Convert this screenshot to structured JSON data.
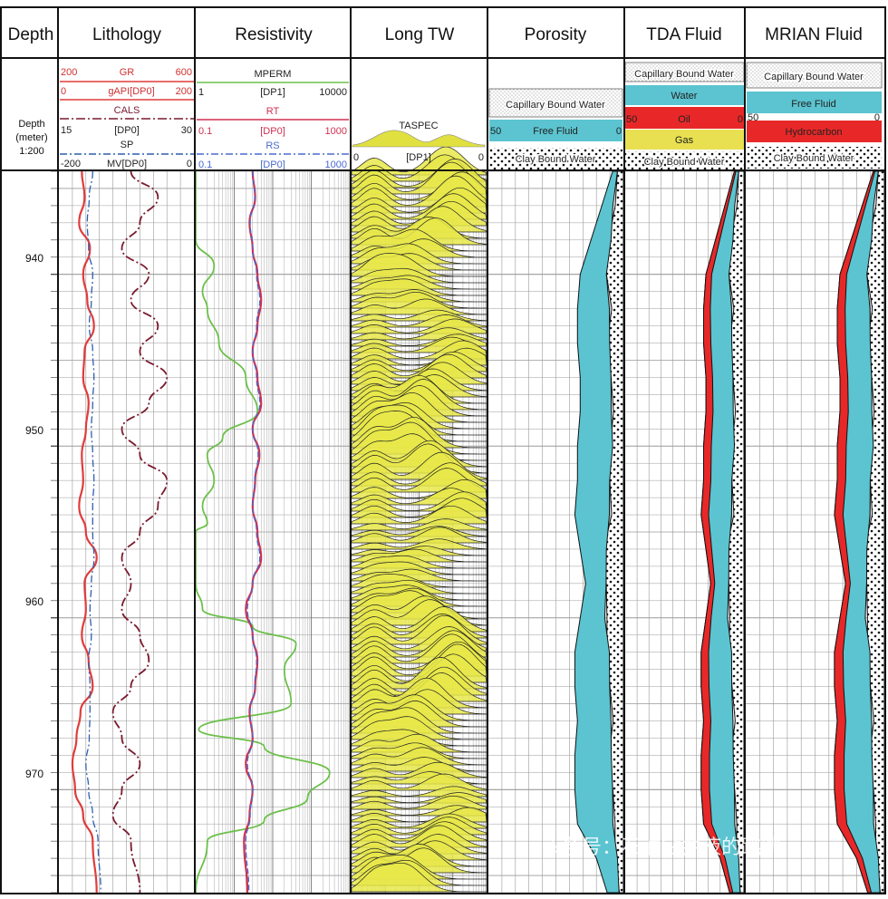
{
  "tracks": {
    "depth": "Depth",
    "lithology": "Lithology",
    "resistivity": "Resistivity",
    "longtw": "Long TW",
    "porosity": "Porosity",
    "tda": "TDA Fluid",
    "mrian": "MRIAN Fluid"
  },
  "depth_header": {
    "line1": "Depth",
    "line2": "(meter)",
    "scale": "1:200"
  },
  "litho_header": {
    "gr": {
      "name": "GR",
      "min": "200",
      "max": "600"
    },
    "gapi": {
      "name": "gAPI[DP0]",
      "min": "0",
      "max": "200"
    },
    "cals": {
      "name": "CALS",
      "min": "15",
      "max": "30",
      "unit": "[DP0]"
    },
    "sp": {
      "name": "SP",
      "min": "-200",
      "max": "0",
      "unit": "MV[DP0]"
    }
  },
  "res_header": {
    "mperm": {
      "name": "MPERM",
      "min": "1",
      "max": "10000",
      "unit": "[DP1]"
    },
    "rt": {
      "name": "RT",
      "min": "0.1",
      "max": "1000",
      "unit": "[DP0]"
    },
    "rs": {
      "name": "RS",
      "min": "0.1",
      "max": "1000",
      "unit": "[DP0]"
    }
  },
  "ltw_header": {
    "name": "TASPEC",
    "min": "0",
    "max": "0",
    "unit": "[DP1]"
  },
  "por_header": {
    "cbw": "Capillary Bound Water",
    "ff": "Free Fluid",
    "clay": "Clay Bound Water",
    "min": "50",
    "max": "0"
  },
  "tda_header": {
    "cbw": "Capillary Bound Water",
    "water": "Water",
    "oil": "Oil",
    "gas": "Gas",
    "clay": "Clay Bound Water",
    "min": "50",
    "max": "0"
  },
  "mrian_header": {
    "cbw": "Capillary Bound Water",
    "ff": "Free Fluid",
    "hc": "Hydrocarbon",
    "clay": "Clay Bound Water",
    "min": "50",
    "max": "0"
  },
  "colors": {
    "gr": "#e03c3c",
    "cals": "#7a1a2e",
    "sp": "#2e5fb0",
    "mperm": "#6cc04a",
    "rt": "#d03050",
    "rs": "#4a6ad0",
    "spec": "#e8e84a",
    "ff": "#5bc4d0",
    "oil": "#e82828",
    "gas": "#e8e050",
    "grid": "#9a9a9a"
  },
  "watermark": "头条号：石油钻井液的跳跳",
  "chart_data": {
    "type": "line",
    "depth_unit": "meter",
    "ylim": [
      934,
      976
    ],
    "depth_ticks": [
      940,
      950,
      960,
      970
    ],
    "series": [
      {
        "name": "GR",
        "track": "Lithology",
        "scale": [
          0,
          200
        ],
        "x": [
          34,
          38,
          30,
          46,
          36,
          42,
          52,
          38,
          36,
          44,
          40,
          34,
          36,
          30,
          40,
          56,
          38,
          40,
          34,
          44,
          50,
          32,
          26,
          20,
          24,
          36,
          50,
          56
        ],
        "y": [
          934,
          935.5,
          937,
          938.5,
          940,
          941.5,
          943,
          944.5,
          946,
          947.5,
          949,
          950.5,
          952,
          953.5,
          955,
          956.5,
          958,
          959.5,
          961,
          962.5,
          964,
          965.5,
          967,
          968.5,
          970,
          971.5,
          973,
          976
        ]
      },
      {
        "name": "CALS",
        "track": "Lithology",
        "scale": [
          15,
          30
        ],
        "x": [
          23,
          26,
          24,
          22,
          25,
          23,
          26,
          24,
          27,
          25,
          22,
          24,
          27,
          26,
          24,
          22,
          23,
          22,
          24,
          25,
          23,
          21,
          22,
          24,
          22,
          21,
          23,
          24
        ],
        "y": [
          934,
          935.5,
          937,
          938.5,
          940,
          941.5,
          943,
          944.5,
          946,
          947.5,
          949,
          950.5,
          952,
          953.5,
          955,
          956.5,
          958,
          959.5,
          961,
          962.5,
          964,
          965.5,
          967,
          968.5,
          970,
          971.5,
          973,
          976
        ]
      },
      {
        "name": "SP",
        "track": "Lithology",
        "scale": [
          -200,
          0
        ],
        "x": [
          -150,
          -155,
          -158,
          -156,
          -150,
          -152,
          -155,
          -150,
          -148,
          -150,
          -152,
          -150,
          -148,
          -150,
          -150,
          -148,
          -152,
          -154,
          -152,
          -156,
          -154,
          -154,
          -155,
          -160,
          -156,
          -150,
          -142,
          -138
        ],
        "y": [
          934,
          935.5,
          937,
          938.5,
          940,
          941.5,
          943,
          944.5,
          946,
          947.5,
          949,
          950.5,
          952,
          953.5,
          955,
          956.5,
          958,
          959.5,
          961,
          962.5,
          964,
          965.5,
          967,
          968.5,
          970,
          971.5,
          973,
          976
        ]
      },
      {
        "name": "MPERM",
        "track": "Resistivity",
        "scale": [
          1,
          10000
        ],
        "log": true,
        "x": [
          1,
          1,
          1,
          3,
          1.5,
          2,
          4,
          20,
          40,
          5,
          2,
          3,
          1.5,
          2,
          1,
          1,
          1,
          1.5,
          30,
          400,
          200,
          300,
          1.2,
          60,
          3000,
          800,
          60,
          2,
          1
        ],
        "y": [
          934,
          936,
          938,
          939.5,
          941,
          942,
          944,
          946,
          948,
          949.5,
          950.5,
          952,
          953.5,
          954.5,
          955,
          956,
          958,
          959.5,
          960.5,
          961.5,
          963,
          965,
          966.5,
          967.5,
          969,
          970.5,
          971.8,
          973,
          976
        ]
      },
      {
        "name": "RT",
        "track": "Resistivity",
        "scale": [
          0.1,
          1000
        ],
        "log": true,
        "x": [
          3,
          3.5,
          2.5,
          3,
          4,
          5,
          4,
          3,
          4,
          5,
          3,
          4.5,
          3.5,
          3,
          4,
          5,
          3,
          2,
          3,
          4,
          3.5,
          2.5,
          3,
          2,
          3,
          2.5,
          1.8,
          2.2
        ],
        "y": [
          934,
          935.5,
          937,
          938.5,
          940,
          941.5,
          943,
          944.5,
          946,
          947.5,
          949,
          950.5,
          952,
          953.5,
          955,
          956.5,
          958,
          959.5,
          961,
          962.5,
          964,
          965.5,
          967,
          968.5,
          970,
          971.5,
          973,
          976
        ]
      },
      {
        "name": "RS",
        "track": "Resistivity",
        "scale": [
          0.1,
          1000
        ],
        "log": true,
        "x": [
          3,
          3.4,
          2.6,
          3,
          3.8,
          4.6,
          3.8,
          3,
          3.8,
          4.6,
          3,
          4.2,
          3.4,
          3,
          3.8,
          4.6,
          3,
          2.2,
          3,
          3.8,
          3.4,
          2.6,
          3,
          2.2,
          3,
          2.6,
          2,
          2.4
        ],
        "y": [
          934,
          935.5,
          937,
          938.5,
          940,
          941.5,
          943,
          944.5,
          946,
          947.5,
          949,
          950.5,
          952,
          953.5,
          955,
          956.5,
          958,
          959.5,
          961,
          962.5,
          964,
          965.5,
          967,
          968.5,
          970,
          971.5,
          973,
          976
        ]
      }
    ],
    "porosity_profiles": {
      "scale": [
        50,
        0
      ],
      "y": [
        934,
        936,
        938,
        940,
        942,
        944,
        946,
        948,
        950,
        952,
        954,
        956,
        958,
        960,
        962,
        964,
        966,
        968,
        970,
        972,
        974,
        976
      ],
      "porosity_total": [
        4,
        8,
        12,
        16,
        17,
        17,
        16,
        16,
        17,
        17,
        18,
        16,
        14,
        16,
        18,
        18,
        17,
        18,
        18,
        17,
        10,
        6
      ],
      "bvi": [
        2,
        4,
        6,
        8,
        7,
        6,
        6,
        5,
        5,
        6,
        7,
        8,
        9,
        9,
        7,
        6,
        6,
        5,
        5,
        4,
        2,
        1
      ],
      "clay": [
        1,
        1.5,
        1,
        1.5,
        1,
        1.5,
        1,
        1.5,
        1,
        1.5,
        1,
        1.5,
        1,
        1.5,
        1,
        1.5,
        1,
        1.5,
        1,
        1.5,
        1,
        1
      ]
    }
  }
}
